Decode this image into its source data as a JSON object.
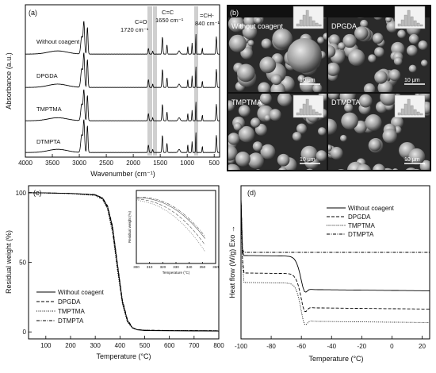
{
  "panel_a": {
    "letter": "(a)",
    "ylabel": "Absorbance (a.u.)",
    "xlabel": "Wavenumber (cm⁻¹)",
    "xticks": [
      "4000",
      "3500",
      "3000",
      "2500",
      "2000",
      "1500",
      "1000",
      "500"
    ],
    "series_labels": [
      "Without coagent",
      "DPGDA",
      "TMPTMA",
      "DTMPTA"
    ],
    "annotations": {
      "co_line1": "C=O",
      "co_line2": "1720 cm⁻¹",
      "cc_line1": "C=C",
      "cc_line2": "1650 cm⁻¹",
      "ch_line1": "=CH-",
      "ch_line2": "840 cm⁻¹"
    },
    "highlight_bands_cm-1": [
      1720,
      1650,
      840
    ]
  },
  "panel_b": {
    "letter": "(b)",
    "sem_labels": [
      "Without coagent",
      "DPGDA",
      "TMPTMA",
      "DTMPTA"
    ],
    "scale_bar": "10 μm"
  },
  "panel_c": {
    "letter": "(c)",
    "xlabel": "Temperature (°C)",
    "ylabel": "Residual weight (%)",
    "xticks": [
      "100",
      "200",
      "300",
      "400",
      "500",
      "600",
      "700",
      "800"
    ],
    "yticks": [
      "0",
      "50",
      "100"
    ],
    "legend": [
      "Without coagent",
      "DPGDA",
      "TMPTMA",
      "DTMPTA"
    ],
    "inset": {
      "xlabel": "Temperature (°C)",
      "ylabel": "Residual weight (%)",
      "xticks": [
        "300",
        "310",
        "320",
        "330",
        "340",
        "350",
        "360"
      ]
    }
  },
  "panel_d": {
    "letter": "(d)",
    "xlabel": "Temperature (°C)",
    "ylabel": "Heat flow (W/g) Exo →",
    "xticks": [
      "-100",
      "-80",
      "-60",
      "-40",
      "-20",
      "0",
      "20"
    ],
    "legend": [
      "Without coagent",
      "DPGDA",
      "TMPTMA",
      "DTMPTA"
    ]
  },
  "chart_data": [
    {
      "type": "line",
      "panel": "a",
      "xlabel": "Wavenumber (cm⁻¹)",
      "ylabel": "Absorbance (a.u.)",
      "xlim": [
        4000,
        400
      ],
      "series": [
        {
          "name": "Without coagent"
        },
        {
          "name": "DPGDA"
        },
        {
          "name": "TMPTMA"
        },
        {
          "name": "DTMPTA"
        }
      ]
    },
    {
      "type": "line",
      "panel": "c",
      "xlabel": "Temperature (°C)",
      "ylabel": "Residual weight (%)",
      "xlim": [
        30,
        800
      ],
      "ylim": [
        -5,
        105
      ],
      "x": [
        30,
        100,
        200,
        300,
        330,
        350,
        370,
        390,
        410,
        430,
        450,
        470,
        500,
        600,
        700,
        800
      ],
      "series": [
        {
          "name": "Without coagent",
          "values": [
            100,
            99.8,
            99.5,
            98.5,
            96,
            90,
            75,
            48,
            22,
            8,
            3,
            1.5,
            1,
            0.8,
            0.7,
            0.6
          ]
        },
        {
          "name": "DPGDA",
          "values": [
            100,
            99.8,
            99.4,
            98.3,
            95.5,
            89,
            73,
            46,
            21,
            8,
            3,
            1.6,
            1.2,
            1.0,
            0.9,
            0.8
          ]
        },
        {
          "name": "TMPTMA",
          "values": [
            100,
            99.7,
            99.3,
            98.0,
            95,
            88,
            71,
            44,
            20,
            7,
            2.8,
            1.5,
            1.1,
            1.0,
            0.9,
            0.8
          ]
        },
        {
          "name": "DTMPTA",
          "values": [
            100,
            99.8,
            99.5,
            98.6,
            96.2,
            90.5,
            76,
            49,
            23,
            9,
            3.2,
            1.7,
            1.2,
            1.0,
            0.9,
            0.8
          ]
        }
      ]
    },
    {
      "type": "line",
      "panel": "d",
      "xlabel": "Temperature (°C)",
      "ylabel": "Heat flow (W/g) Exo →",
      "xlim": [
        -100,
        25
      ],
      "series": [
        {
          "name": "Without coagent"
        },
        {
          "name": "DPGDA"
        },
        {
          "name": "TMPTMA"
        },
        {
          "name": "DTMPTA"
        }
      ]
    }
  ]
}
